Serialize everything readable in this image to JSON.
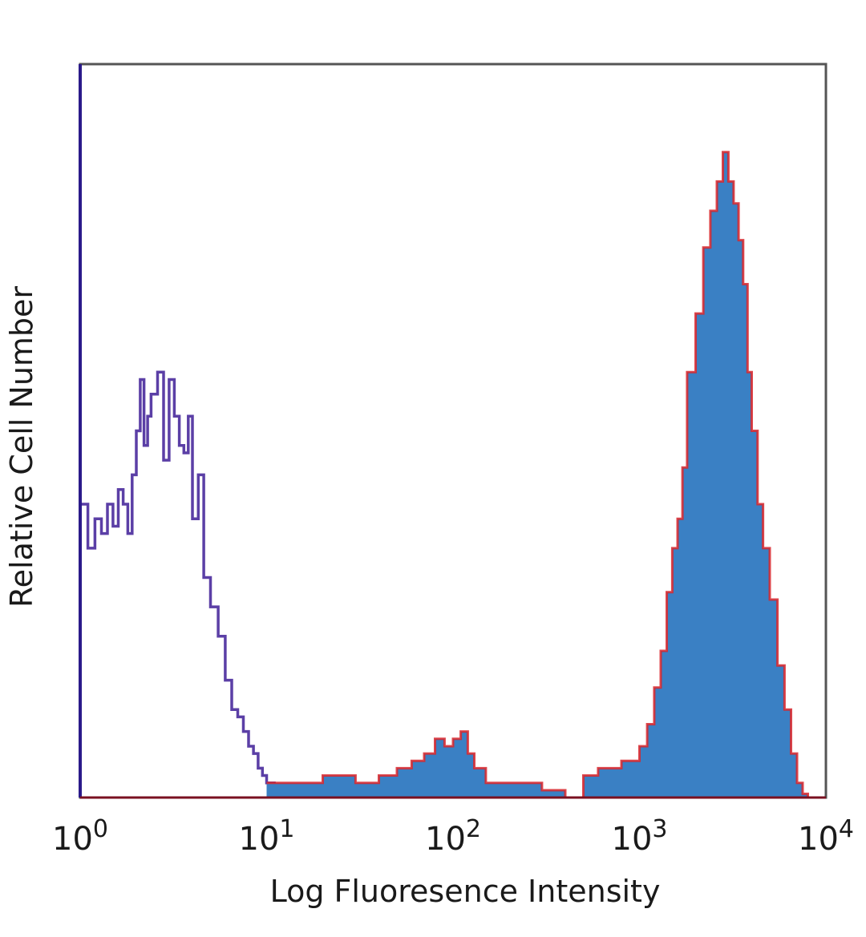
{
  "chart_data": {
    "type": "area",
    "title": "",
    "xlabel": "Log Fluoresence Intensity",
    "ylabel": "Relative Cell Number",
    "xscale": "log",
    "xlim": [
      1,
      10000
    ],
    "ylim": [
      0,
      100
    ],
    "grid": false,
    "legend": "none",
    "x_ticks": [
      {
        "base": "10",
        "exp": "0"
      },
      {
        "base": "10",
        "exp": "1"
      },
      {
        "base": "10",
        "exp": "2"
      },
      {
        "base": "10",
        "exp": "3"
      },
      {
        "base": "10",
        "exp": "4"
      }
    ],
    "series": [
      {
        "style": "line",
        "color": "#5b3fa6",
        "x": [
          1.0,
          1.1,
          1.2,
          1.3,
          1.4,
          1.5,
          1.6,
          1.7,
          1.8,
          1.9,
          2.0,
          2.1,
          2.2,
          2.3,
          2.4,
          2.6,
          2.8,
          3.0,
          3.2,
          3.4,
          3.6,
          3.8,
          4.0,
          4.3,
          4.6,
          5.0,
          5.5,
          6.0,
          6.5,
          7.0,
          7.5,
          8.0,
          8.5,
          9.0,
          9.5,
          10.0,
          11.0,
          12.0,
          13.0,
          14.0
        ],
        "y": [
          40,
          34,
          38,
          36,
          40,
          37,
          42,
          40,
          36,
          44,
          50,
          57,
          48,
          52,
          55,
          58,
          46,
          57,
          52,
          48,
          47,
          52,
          38,
          44,
          30,
          26,
          22,
          16,
          12,
          11,
          9,
          7,
          6,
          4,
          3,
          2,
          1,
          0.5,
          0.3,
          0
        ]
      },
      {
        "style": "filled",
        "color": "#3a80c4",
        "outline": "#d8262b",
        "x": [
          10.0,
          15.0,
          20.0,
          30.0,
          40.0,
          50.0,
          60.0,
          70.0,
          80.0,
          90.0,
          100.0,
          110.0,
          120.0,
          130.0,
          150.0,
          200.0,
          300.0,
          400.0,
          500.0,
          600.0,
          700.0,
          800.0,
          900.0,
          1000.0,
          1100.0,
          1200.0,
          1300.0,
          1400.0,
          1500.0,
          1600.0,
          1700.0,
          1800.0,
          2000.0,
          2200.0,
          2400.0,
          2600.0,
          2800.0,
          3000.0,
          3200.0,
          3400.0,
          3600.0,
          3800.0,
          4000.0,
          4300.0,
          4600.0,
          5000.0,
          5500.0,
          6000.0,
          6500.0,
          7000.0,
          7500.0,
          8000.0
        ],
        "y": [
          2,
          2,
          3,
          2,
          3,
          4,
          5,
          6,
          8,
          7,
          8,
          9,
          6,
          4,
          2,
          2,
          1,
          0,
          3,
          4,
          4,
          5,
          5,
          7,
          10,
          15,
          20,
          28,
          34,
          38,
          45,
          58,
          66,
          75,
          80,
          84,
          88,
          84,
          81,
          76,
          70,
          58,
          50,
          40,
          34,
          27,
          18,
          12,
          6,
          2,
          0.5,
          0
        ]
      }
    ]
  }
}
